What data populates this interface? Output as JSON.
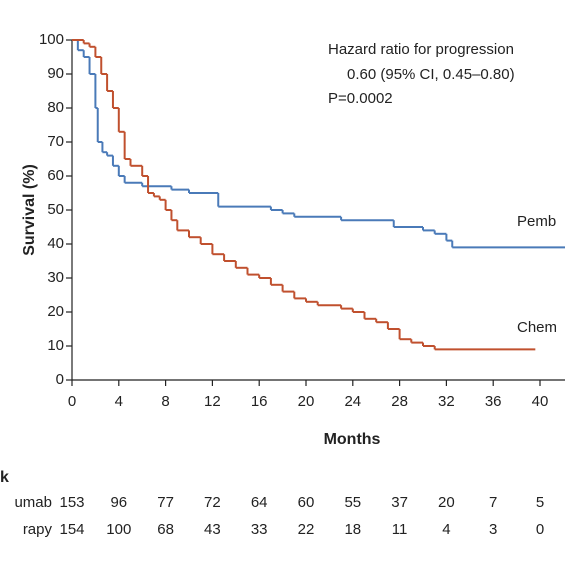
{
  "chart_data": {
    "type": "step",
    "ylabel": "Survival (%)",
    "xlabel": "Months",
    "annotations": [
      "Hazard ratio for progression",
      "0.60 (95% CI, 0.45–0.80)",
      "P=0.0002"
    ],
    "xlim": [
      0,
      42.2
    ],
    "ylim": [
      0,
      100
    ],
    "xticks": [
      0,
      4,
      8,
      12,
      16,
      20,
      24,
      28,
      32,
      36,
      40
    ],
    "yticks": [
      0,
      10,
      20,
      30,
      40,
      50,
      60,
      70,
      80,
      90,
      100
    ],
    "series": [
      {
        "name": "Pemb",
        "color": "#4a7ab8",
        "x": [
          0,
          0.5,
          1,
          1.5,
          2,
          2.2,
          2.6,
          3,
          3.5,
          4,
          4.5,
          6,
          8.5,
          10,
          12.5,
          17,
          18,
          19,
          23,
          27.5,
          30,
          31,
          32,
          32.5,
          42.2
        ],
        "values": [
          100,
          97,
          95,
          90,
          80,
          70,
          67,
          66,
          63,
          60,
          58,
          57,
          56,
          55,
          51,
          50,
          49,
          48,
          47,
          45,
          44,
          43,
          41,
          39,
          39
        ]
      },
      {
        "name": "Chem",
        "color": "#c0502e",
        "x": [
          0,
          1,
          1.5,
          2,
          2.5,
          3,
          3.5,
          4,
          4.5,
          5,
          6,
          6.5,
          7,
          7.5,
          8,
          8.5,
          9,
          10,
          11,
          12,
          13,
          14,
          15,
          16,
          17,
          18,
          19,
          20,
          21,
          23,
          24,
          25,
          26,
          27,
          28,
          29,
          30,
          31,
          39.6
        ],
        "values": [
          100,
          99,
          98,
          95,
          90,
          85,
          80,
          73,
          65,
          63,
          60,
          55,
          54,
          53,
          50,
          47,
          44,
          42,
          40,
          37,
          35,
          33,
          31,
          30,
          28,
          26,
          24,
          23,
          22,
          21,
          20,
          18,
          17,
          15,
          12,
          11,
          10,
          9,
          9
        ]
      }
    ],
    "risk_table": {
      "title": "k",
      "rows": [
        {
          "label": "umab",
          "values": [
            153,
            96,
            77,
            72,
            64,
            60,
            55,
            37,
            20,
            7,
            5
          ]
        },
        {
          "label": "rapy",
          "values": [
            154,
            100,
            68,
            43,
            33,
            22,
            18,
            11,
            4,
            3,
            0
          ]
        }
      ]
    }
  }
}
